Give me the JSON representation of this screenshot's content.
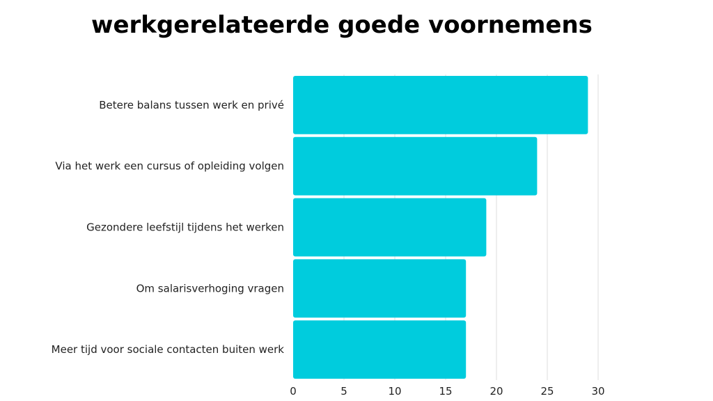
{
  "chart_data": {
    "type": "bar",
    "orientation": "horizontal",
    "title": "werkgerelateerde goede voornemens",
    "xlabel": "",
    "ylabel": "",
    "categories": [
      "Betere balans tussen werk en privé",
      "Via het werk een cursus of opleiding volgen",
      "Gezondere leefstijl tijdens het werken",
      "Om salarisverhoging vragen",
      "Meer tijd voor sociale contacten buiten werk"
    ],
    "values": [
      29,
      24,
      19,
      17,
      17
    ],
    "xlim": [
      0,
      30
    ],
    "xticks": [
      "0",
      "5",
      "10",
      "15",
      "20",
      "25",
      "30"
    ],
    "grid": "vertical",
    "legend": "none",
    "bar_color": "#00CCDD",
    "grid_color": "#DDDDDD"
  }
}
